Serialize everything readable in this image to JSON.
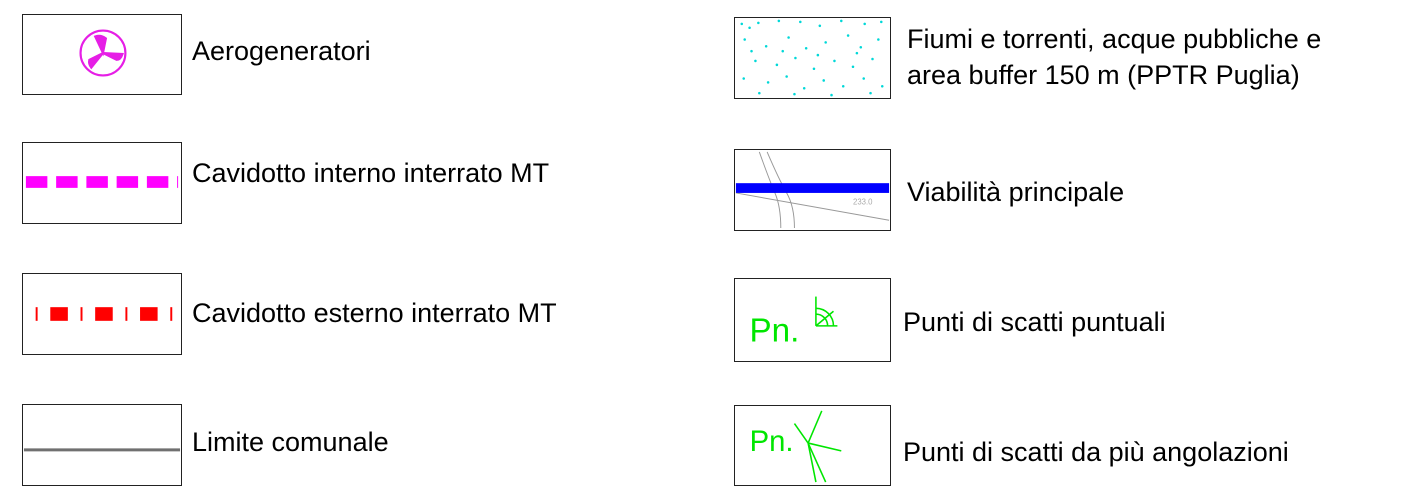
{
  "legend": {
    "left": [
      {
        "symbol": "wind-turbine-icon",
        "label": "Aerogeneratori",
        "color": "#e61ee6"
      },
      {
        "symbol": "magenta-dashed-line",
        "label": "Cavidotto interno interrato MT",
        "color": "#ff00ff"
      },
      {
        "symbol": "red-dash-dot-line",
        "label": "Cavidotto esterno interrato MT",
        "color": "#ff0000"
      },
      {
        "symbol": "gray-solid-line",
        "label": "Limite comunale",
        "color": "#707070"
      }
    ],
    "right": [
      {
        "symbol": "cyan-dot-pattern",
        "label_line1": "Fiumi e torrenti, acque pubbliche e",
        "label_line2": "area buffer 150 m (PPTR Puglia)",
        "color": "#00e5e5"
      },
      {
        "symbol": "blue-road-line",
        "label": "Viabilità principale",
        "color": "#0000ff",
        "elevation_text": "233.0"
      },
      {
        "symbol": "single-photo-point-icon",
        "label": "Punti di scatti puntuali",
        "marker_text": "Pn.",
        "color": "#00e600"
      },
      {
        "symbol": "multi-angle-photo-point-icon",
        "label": "Punti di scatti da più angolazioni",
        "marker_text": "Pn.",
        "color": "#00e600"
      }
    ]
  }
}
